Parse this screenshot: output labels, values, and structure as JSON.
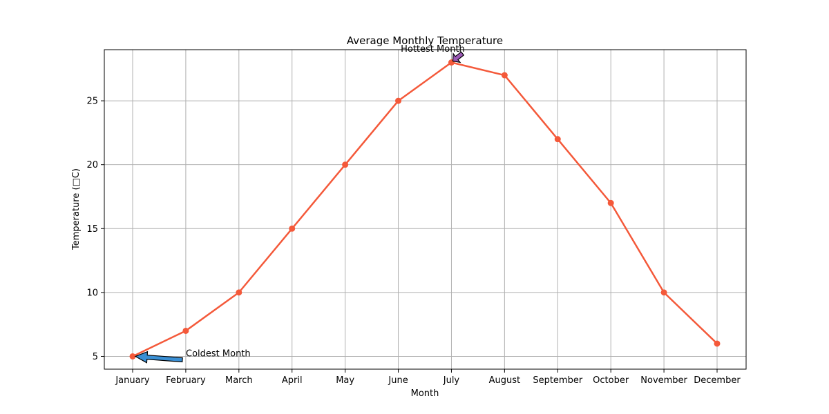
{
  "chart_data": {
    "type": "line",
    "title": "Average Monthly Temperature",
    "xlabel": "Month",
    "ylabel": "Temperature (□C)",
    "categories": [
      "January",
      "February",
      "March",
      "April",
      "May",
      "June",
      "July",
      "August",
      "September",
      "October",
      "November",
      "December"
    ],
    "series": [
      {
        "values": [
          5,
          7,
          10,
          15,
          20,
          25,
          28,
          27,
          22,
          17,
          10,
          6
        ],
        "color": "#f4593a"
      }
    ],
    "yticks": [
      5,
      10,
      15,
      20,
      25
    ],
    "ylim": [
      4,
      29
    ],
    "grid": true,
    "annotations": [
      {
        "text": "Coldest Month",
        "category": "January",
        "value": 5,
        "text_value": 5,
        "arrow_color": "#3a8fd4"
      },
      {
        "text": "Hottest Month",
        "category": "July",
        "value": 28,
        "text_value": 29,
        "arrow_color": "#9b59b6"
      }
    ]
  }
}
